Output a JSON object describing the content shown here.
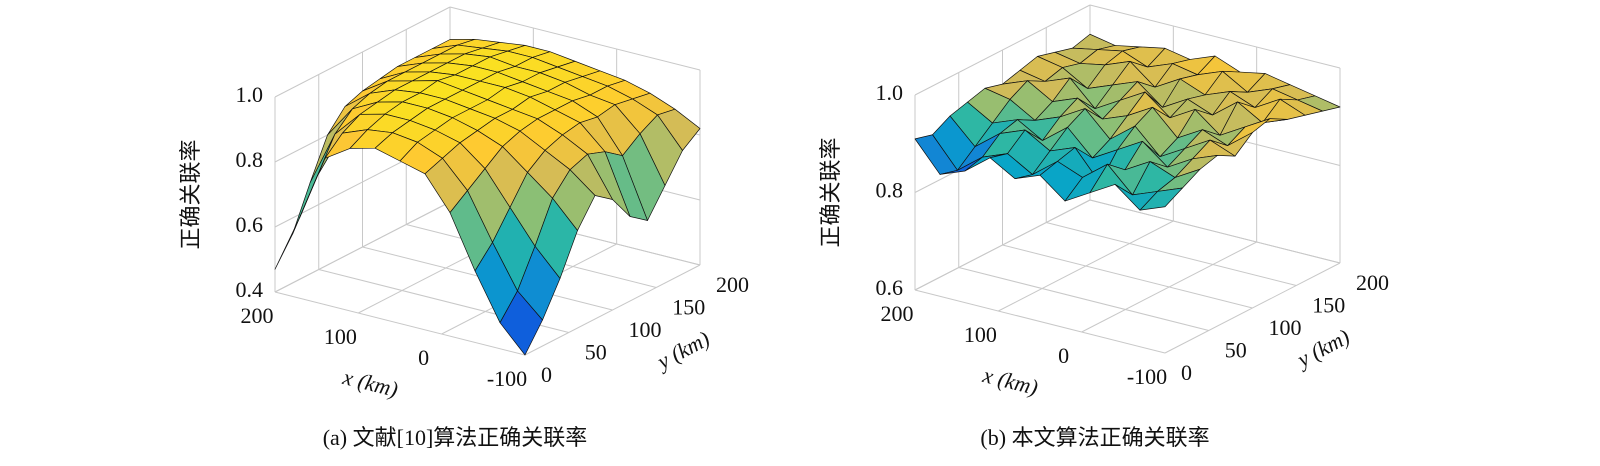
{
  "chart_data": [
    {
      "type": "surface",
      "title": "(a) 文献[10]算法正确关联率",
      "xlabel": "x (km)",
      "ylabel": "y (km)",
      "zlabel": "正确关联率",
      "colormap": [
        "#352a87",
        "#0f5cdd",
        "#1481d6",
        "#06a4ca",
        "#2eb7a4",
        "#87bf77",
        "#d1bb59",
        "#fec832",
        "#f9e51e"
      ],
      "x": [
        -100,
        -70,
        -40,
        -10,
        20,
        50,
        80,
        110,
        140,
        170,
        200
      ],
      "y": [
        0,
        20,
        40,
        60,
        80,
        100,
        120,
        140,
        160,
        180,
        200
      ],
      "z": [
        [
          0.4,
          0.48,
          0.62,
          0.78,
          0.88,
          0.9,
          0.92,
          0.9,
          0.85,
          0.65,
          0.47
        ],
        [
          0.48,
          0.55,
          0.68,
          0.82,
          0.9,
          0.93,
          0.94,
          0.93,
          0.9,
          0.75,
          0.55
        ],
        [
          0.58,
          0.66,
          0.76,
          0.86,
          0.92,
          0.94,
          0.95,
          0.95,
          0.93,
          0.85,
          0.68
        ],
        [
          0.7,
          0.78,
          0.84,
          0.9,
          0.93,
          0.95,
          0.96,
          0.96,
          0.94,
          0.9,
          0.8
        ],
        [
          0.78,
          0.84,
          0.88,
          0.92,
          0.94,
          0.95,
          0.96,
          0.96,
          0.95,
          0.92,
          0.86
        ],
        [
          0.74,
          0.86,
          0.9,
          0.93,
          0.94,
          0.95,
          0.96,
          0.97,
          0.95,
          0.93,
          0.88
        ],
        [
          0.66,
          0.84,
          0.91,
          0.93,
          0.95,
          0.96,
          0.96,
          0.96,
          0.95,
          0.93,
          0.89
        ],
        [
          0.62,
          0.8,
          0.9,
          0.93,
          0.94,
          0.95,
          0.96,
          0.96,
          0.95,
          0.93,
          0.9
        ],
        [
          0.7,
          0.84,
          0.91,
          0.92,
          0.94,
          0.95,
          0.95,
          0.96,
          0.95,
          0.93,
          0.9
        ],
        [
          0.78,
          0.87,
          0.9,
          0.92,
          0.93,
          0.94,
          0.95,
          0.95,
          0.94,
          0.93,
          0.9
        ],
        [
          0.82,
          0.86,
          0.89,
          0.91,
          0.92,
          0.93,
          0.94,
          0.94,
          0.93,
          0.92,
          0.9
        ]
      ],
      "xlim": [
        -100,
        200
      ],
      "ylim": [
        0,
        200
      ],
      "zlim": [
        0.4,
        1
      ],
      "xticks": [
        200,
        100,
        0,
        -100
      ],
      "yticks": [
        0,
        50,
        100,
        150,
        200
      ],
      "zticks": [
        0.4,
        0.6,
        0.8,
        {
          "value": 1,
          "label": "1.0"
        }
      ],
      "grid": true
    },
    {
      "type": "surface",
      "title": "(b) 本文算法正确关联率",
      "xlabel": "x (km)",
      "ylabel": "y (km)",
      "zlabel": "正确关联率",
      "colormap": [
        "#352a87",
        "#0f5cdd",
        "#1481d6",
        "#06a4ca",
        "#2eb7a4",
        "#87bf77",
        "#d1bb59",
        "#fec832",
        "#f9e51e"
      ],
      "x": [
        -100,
        -70,
        -40,
        -10,
        20,
        50,
        80,
        110,
        140,
        170,
        200
      ],
      "y": [
        0,
        20,
        40,
        60,
        80,
        100,
        120,
        140,
        160,
        180,
        200
      ],
      "z": [
        [
          0.9,
          0.88,
          0.92,
          0.89,
          0.86,
          0.9,
          0.88,
          0.91,
          0.87,
          0.85,
          0.91
        ],
        [
          0.92,
          0.9,
          0.88,
          0.93,
          0.89,
          0.91,
          0.87,
          0.9,
          0.88,
          0.84,
          0.9
        ],
        [
          0.94,
          0.91,
          0.93,
          0.9,
          0.86,
          0.92,
          0.9,
          0.93,
          0.91,
          0.87,
          0.92
        ],
        [
          0.95,
          0.93,
          0.9,
          0.94,
          0.91,
          0.88,
          0.93,
          0.89,
          0.92,
          0.9,
          0.93
        ],
        [
          0.93,
          0.95,
          0.92,
          0.89,
          0.94,
          0.9,
          0.95,
          0.92,
          0.9,
          0.93,
          0.94
        ],
        [
          0.96,
          0.92,
          0.94,
          0.91,
          0.96,
          0.93,
          0.91,
          0.94,
          0.92,
          0.95,
          0.93
        ],
        [
          0.97,
          0.94,
          0.91,
          0.95,
          0.92,
          0.96,
          0.93,
          0.9,
          0.95,
          0.93,
          0.94
        ],
        [
          0.95,
          0.93,
          0.96,
          0.92,
          0.94,
          0.91,
          0.95,
          0.93,
          0.91,
          0.94,
          0.95
        ],
        [
          0.94,
          0.96,
          0.93,
          0.95,
          0.93,
          0.95,
          0.92,
          0.96,
          0.94,
          0.93,
          0.94
        ],
        [
          0.93,
          0.94,
          0.95,
          0.93,
          0.96,
          0.94,
          0.95,
          0.93,
          0.95,
          0.94,
          0.93
        ],
        [
          0.92,
          0.93,
          0.94,
          0.95,
          0.94,
          0.96,
          0.94,
          0.95,
          0.94,
          0.93,
          0.94
        ]
      ],
      "xlim": [
        -100,
        200
      ],
      "ylim": [
        0,
        200
      ],
      "zlim": [
        0.6,
        1
      ],
      "xticks": [
        200,
        100,
        0,
        -100
      ],
      "yticks": [
        0,
        50,
        100,
        150,
        200
      ],
      "zticks": [
        0.6,
        0.8,
        {
          "value": 1,
          "label": "1.0"
        }
      ],
      "grid": true
    }
  ]
}
